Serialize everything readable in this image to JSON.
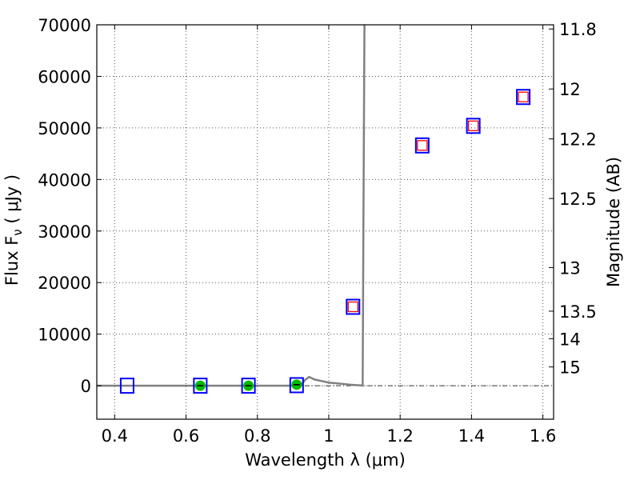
{
  "chart_data": {
    "type": "scatter",
    "xlabel": "Wavelength  λ (μm)",
    "ylabel": "Flux  F",
    "ylabel_sub": "ν",
    "ylabel_unit": " ( μJy )",
    "y2label": "Magnitude (AB)",
    "xlim": [
      0.35,
      1.63
    ],
    "ylim": [
      -6500,
      70000
    ],
    "grid": true,
    "x_ticks": [
      0.4,
      0.6,
      0.8,
      1.0,
      1.2,
      1.4,
      1.6
    ],
    "x_tick_labels": [
      "0.4",
      "0.6",
      "0.8",
      "1",
      "1.2",
      "1.4",
      "1.6"
    ],
    "y_ticks": [
      0,
      10000,
      20000,
      30000,
      40000,
      50000,
      60000,
      70000
    ],
    "y_tick_labels": [
      "0",
      "10000",
      "20000",
      "30000",
      "40000",
      "50000",
      "60000",
      "70000"
    ],
    "y2_ticks": [
      11.8,
      12,
      12.2,
      12.5,
      13,
      13.5,
      14,
      15
    ],
    "y2_tick_labels": [
      "11.8",
      "12",
      "12.2",
      "12.5",
      "13",
      "13.5",
      "14",
      "15"
    ],
    "series": [
      {
        "marker": "open-square",
        "x": [
          0.435,
          0.64,
          0.775,
          0.91,
          1.068,
          1.262,
          1.405,
          1.545
        ],
        "y": [
          0,
          0,
          0,
          100,
          15300,
          46600,
          50400,
          56000
        ]
      },
      {
        "marker": "small-open-square",
        "x": [
          1.068,
          1.262,
          1.405,
          1.545
        ],
        "y": [
          15300,
          46600,
          50400,
          56000
        ]
      },
      {
        "marker": "filled-circle",
        "x": [
          0.64,
          0.775,
          0.91
        ],
        "y": [
          0,
          0,
          200
        ]
      },
      {
        "marker": "line",
        "x": [
          0.35,
          0.92,
          0.935,
          0.945,
          0.96,
          0.98,
          1.0,
          1.03,
          1.06,
          1.09,
          1.095,
          1.097,
          1.1
        ],
        "y": [
          0,
          0,
          1200,
          1700,
          1200,
          900,
          600,
          400,
          200,
          50,
          0,
          30000,
          75000
        ]
      }
    ],
    "colors": {
      "square_edge": "#0000ff",
      "inner_square_edge": "#ff0000",
      "circle_fill": "#00bb00",
      "line": "#808080",
      "grid": "#555555",
      "zero_line": "#000000"
    }
  }
}
